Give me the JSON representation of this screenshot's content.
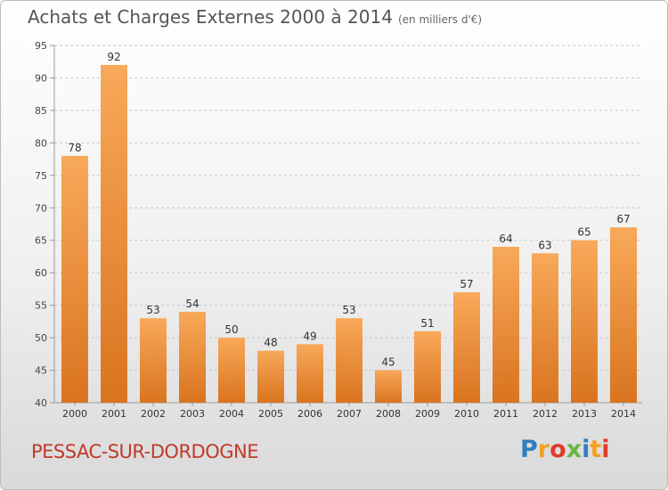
{
  "header": {
    "title": "Achats et Charges Externes 2000 à 2014",
    "unit": "(en milliers d'€)"
  },
  "footer": {
    "commune": "PESSAC-SUR-DORDOGNE",
    "logo_parts": [
      "P",
      "r",
      "o",
      "x",
      "i",
      "t",
      "i"
    ]
  },
  "colors": {
    "bar_top": "#f8a95a",
    "bar_bottom": "#d9741f",
    "commune": "#c0392b"
  },
  "chart_data": {
    "type": "bar",
    "title": "Achats et Charges Externes 2000 à 2014",
    "subtitle": "(en milliers d'€)",
    "categories": [
      "2000",
      "2001",
      "2002",
      "2003",
      "2004",
      "2005",
      "2006",
      "2007",
      "2008",
      "2009",
      "2010",
      "2011",
      "2012",
      "2013",
      "2014"
    ],
    "values": [
      78,
      92,
      53,
      54,
      50,
      48,
      49,
      53,
      45,
      51,
      57,
      64,
      63,
      65,
      67
    ],
    "ylim": [
      40,
      95
    ],
    "yticks": [
      40,
      45,
      50,
      55,
      60,
      65,
      70,
      75,
      80,
      85,
      90,
      95
    ],
    "grid": "dashed-horizontal",
    "xlabel": "",
    "ylabel": ""
  }
}
